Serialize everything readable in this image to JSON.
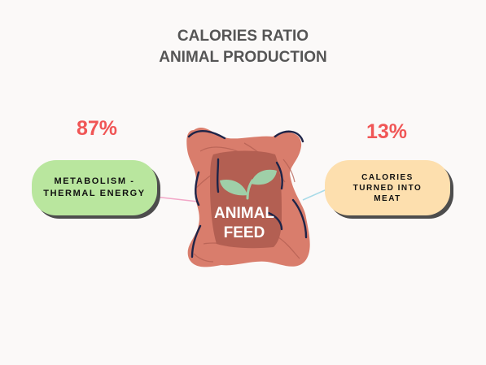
{
  "title": {
    "line1": "CALORIES RATIO",
    "line2": "ANIMAL PRODUCTION"
  },
  "left": {
    "percent": "87%",
    "label_line1": "METABOLISM -",
    "label_line2": "THERMAL ENERGY"
  },
  "right": {
    "percent": "13%",
    "label_line1": "CALORIES",
    "label_line2": "TURNED INTO",
    "label_line3": "MEAT"
  },
  "center": {
    "label_line1": "ANIMAL",
    "label_line2": "FEED",
    "icon": "sprout-icon"
  },
  "colors": {
    "title": "#555555",
    "percent": "#f05656",
    "left_pill": "#b9e69e",
    "right_pill": "#fddfae",
    "sack": "#d97d6c",
    "sack_inner": "#b35f52",
    "sprout": "#9fcfa8",
    "connector_left": "#f2a7c7",
    "connector_right": "#a9dbe8",
    "outline": "#1e2448",
    "background": "#fbf9f8"
  }
}
